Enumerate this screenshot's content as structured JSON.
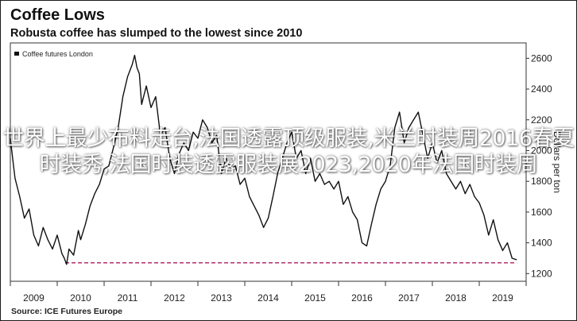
{
  "header": {
    "title": "Coffee Lows",
    "subtitle": "Robusta coffee has slumped to the lowest since 2010"
  },
  "overlay_text": "世界上最少布料走台,法国透露顶级服装,米兰时装周2016春夏时装秀,法国时装透露服装展2023,2020年法国时装周",
  "colors": {
    "series": "#111111",
    "reference_line": "#b0306e",
    "plot_border": "#333333",
    "tick": "#333333"
  },
  "chart_data": {
    "type": "line",
    "title": "Coffee Lows",
    "subtitle": "Robusta coffee has slumped to the lowest since 2010",
    "ylabel": "Dollars per ton",
    "ylim": [
      1150,
      2700
    ],
    "yticks": [
      1200,
      1400,
      1600,
      1800,
      2000,
      2200,
      2400,
      2600
    ],
    "xlim": [
      2008.5,
      2019.5
    ],
    "xticks": [
      "2009",
      "2010",
      "2011",
      "2012",
      "2013",
      "2014",
      "2015",
      "2016",
      "2017",
      "2018",
      "2019"
    ],
    "legend": {
      "position": "top-left"
    },
    "source": "Source: ICE Futures Europe",
    "reference_line": {
      "y": 1270,
      "x_start": 2009.67,
      "x_end": 2019.3,
      "style": "dashed"
    },
    "series": [
      {
        "name": "Coffee futures London",
        "x": [
          2008.5,
          2008.55,
          2008.6,
          2008.7,
          2008.8,
          2008.9,
          2009.0,
          2009.1,
          2009.2,
          2009.3,
          2009.4,
          2009.5,
          2009.6,
          2009.65,
          2009.7,
          2009.75,
          2009.85,
          2009.95,
          2010.0,
          2010.1,
          2010.2,
          2010.3,
          2010.4,
          2010.5,
          2010.6,
          2010.7,
          2010.8,
          2010.9,
          2011.0,
          2011.1,
          2011.15,
          2011.2,
          2011.25,
          2011.3,
          2011.4,
          2011.5,
          2011.6,
          2011.7,
          2011.8,
          2011.9,
          2012.0,
          2012.1,
          2012.2,
          2012.3,
          2012.4,
          2012.5,
          2012.6,
          2012.7,
          2012.8,
          2012.9,
          2013.0,
          2013.1,
          2013.2,
          2013.3,
          2013.4,
          2013.5,
          2013.6,
          2013.7,
          2013.8,
          2013.9,
          2014.0,
          2014.1,
          2014.2,
          2014.3,
          2014.4,
          2014.5,
          2014.6,
          2014.7,
          2014.8,
          2014.9,
          2015.0,
          2015.1,
          2015.2,
          2015.3,
          2015.4,
          2015.5,
          2015.6,
          2015.7,
          2015.8,
          2015.9,
          2016.0,
          2016.1,
          2016.2,
          2016.3,
          2016.4,
          2016.5,
          2016.6,
          2016.7,
          2016.8,
          2016.9,
          2017.0,
          2017.1,
          2017.2,
          2017.3,
          2017.4,
          2017.5,
          2017.6,
          2017.7,
          2017.8,
          2017.9,
          2018.0,
          2018.1,
          2018.2,
          2018.3,
          2018.4,
          2018.5,
          2018.6,
          2018.7,
          2018.8,
          2018.9,
          2019.0,
          2019.1,
          2019.2,
          2019.3
        ],
        "values": [
          2080,
          1950,
          1820,
          1700,
          1560,
          1620,
          1450,
          1380,
          1500,
          1420,
          1360,
          1450,
          1330,
          1300,
          1260,
          1360,
          1320,
          1480,
          1420,
          1520,
          1640,
          1720,
          1780,
          1880,
          1900,
          2020,
          2150,
          2350,
          2480,
          2560,
          2620,
          2540,
          2500,
          2300,
          2420,
          2280,
          2350,
          2100,
          2150,
          1950,
          1850,
          1980,
          2050,
          2000,
          2120,
          2080,
          2200,
          2150,
          2050,
          2100,
          1850,
          1950,
          1880,
          1900,
          1780,
          1820,
          1700,
          1640,
          1580,
          1500,
          1560,
          1700,
          1850,
          1950,
          2050,
          2120,
          1950,
          2000,
          1850,
          1950,
          1800,
          1850,
          1780,
          1800,
          1750,
          1800,
          1650,
          1700,
          1600,
          1550,
          1400,
          1380,
          1520,
          1650,
          1750,
          1800,
          1900,
          2150,
          2250,
          2050,
          2150,
          2200,
          2250,
          2100,
          1950,
          2050,
          1920,
          2000,
          1850,
          1800,
          1750,
          1800,
          1720,
          1780,
          1700,
          1660,
          1580,
          1450,
          1550,
          1420,
          1350,
          1400,
          1300,
          1290
        ]
      }
    ]
  }
}
